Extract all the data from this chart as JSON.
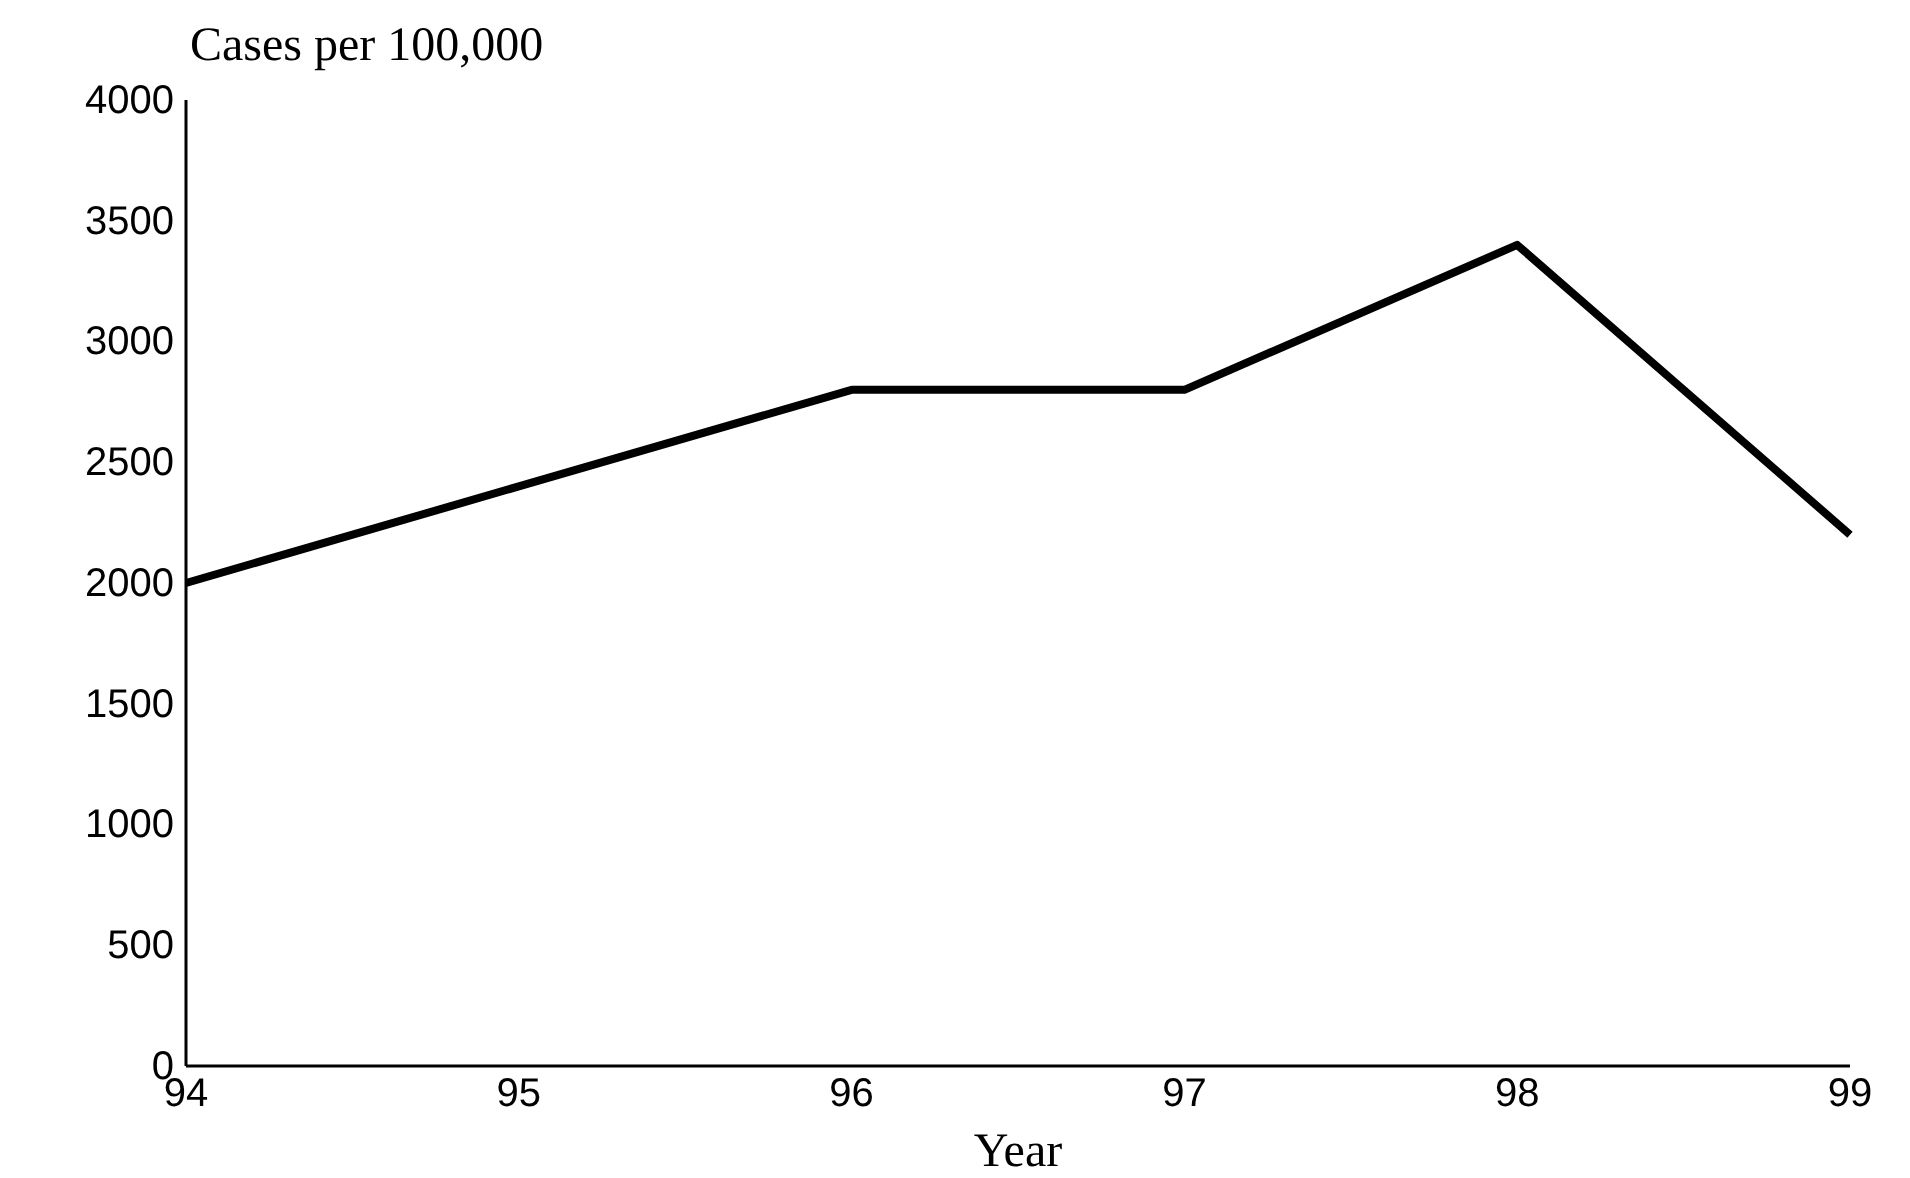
{
  "chart_data": {
    "type": "line",
    "ylabel": "Cases per 100,000",
    "xlabel": "Year",
    "x": [
      94,
      95,
      96,
      97,
      98,
      99
    ],
    "series": [
      {
        "color": "#000000",
        "values": [
          2000,
          2400,
          2800,
          2800,
          3400,
          2200
        ]
      }
    ],
    "xlim": [
      94,
      99
    ],
    "xticks": [
      94,
      95,
      96,
      97,
      98,
      99
    ],
    "ylim": [
      0,
      4000
    ],
    "yticks": [
      0,
      500,
      1000,
      1500,
      2000,
      2500,
      3000,
      3500,
      4000
    ],
    "grid": false,
    "marker": "none",
    "line_style": "solid"
  }
}
